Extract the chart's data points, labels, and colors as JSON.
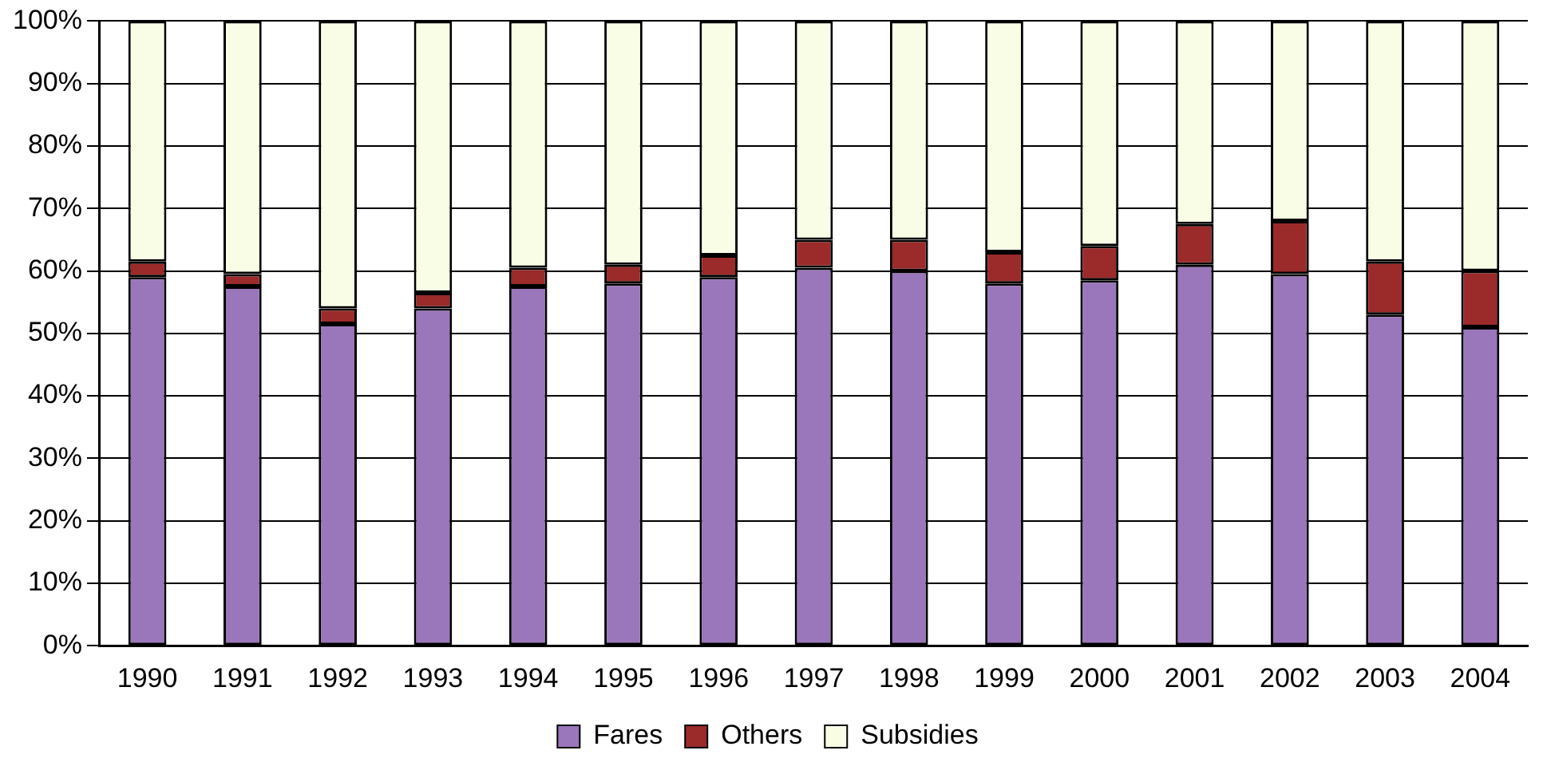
{
  "chart_data": {
    "type": "bar",
    "stacked": true,
    "categories": [
      "1990",
      "1991",
      "1992",
      "1993",
      "1994",
      "1995",
      "1996",
      "1997",
      "1998",
      "1999",
      "2000",
      "2001",
      "2002",
      "2003",
      "2004"
    ],
    "series": [
      {
        "name": "Fares",
        "color": "#9a76bb",
        "values": [
          59,
          57.5,
          51.5,
          54,
          57.5,
          58,
          59,
          60.5,
          60,
          58,
          58.5,
          61,
          59.5,
          53,
          51
        ]
      },
      {
        "name": "Others",
        "color": "#9b2a2a",
        "values": [
          2.5,
          2,
          2.5,
          2.5,
          3,
          3,
          3.5,
          4.5,
          5,
          5,
          5.5,
          6.5,
          8.5,
          8.5,
          9
        ]
      },
      {
        "name": "Subsidies",
        "color": "#fafde6",
        "values": [
          38.5,
          40.5,
          46,
          43.5,
          39.5,
          39,
          37.5,
          35,
          35,
          37,
          36,
          32.5,
          32,
          38.5,
          40
        ]
      }
    ],
    "ylim": [
      0,
      100
    ],
    "yticks": [
      {
        "value": 0,
        "label": "0%"
      },
      {
        "value": 10,
        "label": "10%"
      },
      {
        "value": 20,
        "label": "20%"
      },
      {
        "value": 30,
        "label": "30%"
      },
      {
        "value": 40,
        "label": "40%"
      },
      {
        "value": 50,
        "label": "50%"
      },
      {
        "value": 60,
        "label": "60%"
      },
      {
        "value": 70,
        "label": "70%"
      },
      {
        "value": 80,
        "label": "80%"
      },
      {
        "value": 90,
        "label": "90%"
      },
      {
        "value": 100,
        "label": "100%"
      }
    ],
    "grid": "y",
    "legend": "bottom"
  }
}
